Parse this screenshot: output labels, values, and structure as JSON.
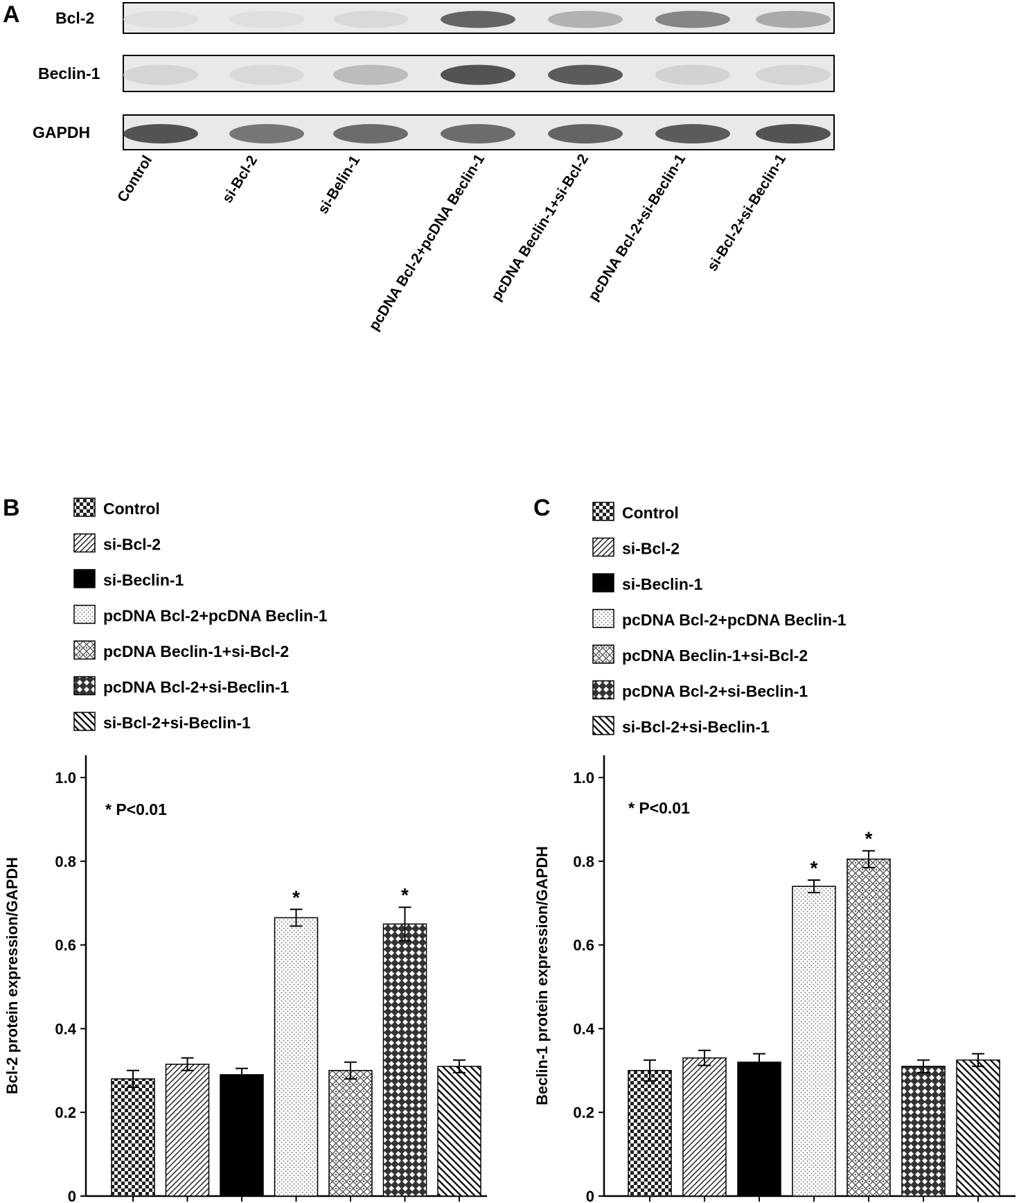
{
  "panel_a": {
    "letter": "A",
    "rows": [
      "Bcl-2",
      "Beclin-1",
      "GAPDH"
    ],
    "lanes": [
      "Control",
      "si-Bcl-2",
      "si-Belin-1",
      "pcDNA Bcl-2+pcDNA Beclin-1",
      "pcDNA Beclin-1+si-Bcl-2",
      "pcDNA Bcl-2+si-Beclin-1",
      "si-Bcl-2+si-Beclin-1"
    ],
    "intensity": [
      [
        0.05,
        0.05,
        0.08,
        0.75,
        0.3,
        0.55,
        0.35
      ],
      [
        0.1,
        0.08,
        0.25,
        0.85,
        0.8,
        0.12,
        0.1
      ],
      [
        0.85,
        0.65,
        0.7,
        0.7,
        0.75,
        0.8,
        0.85
      ]
    ]
  },
  "legend_items": [
    "Control",
    "si-Bcl-2",
    "si-Beclin-1",
    "pcDNA Bcl-2+pcDNA Beclin-1",
    "pcDNA Beclin-1+si-Bcl-2",
    "pcDNA Bcl-2+si-Beclin-1",
    "si-Bcl-2+si-Beclin-1"
  ],
  "chart_data": [
    {
      "panel": "B",
      "type": "bar",
      "categories": [
        "Control",
        "si-Bcl-2",
        "si-Beclin-1",
        "pcDNA Bcl-2+pcDNA Beclin-1",
        "pcDNA Beclin-1+si-Bcl-2",
        "pcDNA Bcl-2+si-Beclin-1",
        "si-Bcl-2+si-Beclin-1"
      ],
      "values": [
        0.28,
        0.315,
        0.29,
        0.665,
        0.3,
        0.65,
        0.31
      ],
      "errors": [
        0.02,
        0.015,
        0.015,
        0.02,
        0.02,
        0.04,
        0.015
      ],
      "significant": [
        false,
        false,
        false,
        true,
        false,
        true,
        false
      ],
      "ylabel": "Bcl-2 protein expression/GAPDH",
      "ylim": [
        0,
        1.0
      ],
      "yticks": [
        "0",
        "0.2",
        "0.4",
        "0.6",
        "0.8",
        "1.0"
      ],
      "annotation": "P<0.01",
      "annotation_symbol": "*"
    },
    {
      "panel": "C",
      "type": "bar",
      "categories": [
        "Control",
        "si-Bcl-2",
        "si-Beclin-1",
        "pcDNA Bcl-2+pcDNA Beclin-1",
        "pcDNA Beclin-1+si-Bcl-2",
        "pcDNA Bcl-2+si-Beclin-1",
        "si-Bcl-2+si-Beclin-1"
      ],
      "values": [
        0.3,
        0.33,
        0.32,
        0.74,
        0.805,
        0.31,
        0.325
      ],
      "errors": [
        0.025,
        0.018,
        0.02,
        0.015,
        0.02,
        0.015,
        0.015
      ],
      "significant": [
        false,
        false,
        false,
        true,
        true,
        false,
        false
      ],
      "ylabel": "Beclin-1 protein expression/GAPDH",
      "ylim": [
        0,
        1.0
      ],
      "yticks": [
        "0",
        "0.2",
        "0.4",
        "0.6",
        "0.8",
        "1.0"
      ],
      "annotation": "P<0.01",
      "annotation_symbol": "*"
    }
  ]
}
